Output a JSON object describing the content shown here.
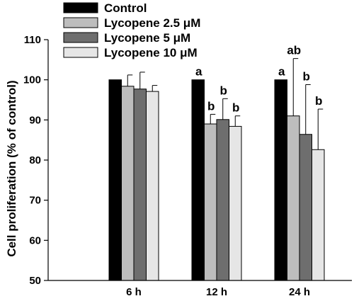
{
  "chart_data": {
    "type": "bar",
    "title": "",
    "xlabel": "",
    "ylabel": "Cell proliferation (% of control)",
    "ylim": [
      50,
      110
    ],
    "yticks": [
      50,
      60,
      70,
      80,
      90,
      100,
      110
    ],
    "categories": [
      "6 h",
      "12 h",
      "24 h"
    ],
    "grid": false,
    "legend_position": "top-left",
    "series": [
      {
        "name": "Control",
        "color": "#000000",
        "values": [
          100,
          100,
          100
        ],
        "errors": [
          0,
          0,
          0
        ],
        "labels": [
          "",
          "a",
          "a"
        ]
      },
      {
        "name": "Lycopene 2.5 μM",
        "color": "#bdbdbd",
        "values": [
          98.4,
          89.0,
          91.0
        ],
        "errors": [
          2.8,
          2.4,
          14.3
        ],
        "labels": [
          "",
          "b",
          "ab"
        ]
      },
      {
        "name": "Lycopene 5 μM",
        "color": "#6e6e6e",
        "values": [
          97.7,
          90.1,
          86.4
        ],
        "errors": [
          4.2,
          5.2,
          12.4
        ],
        "labels": [
          "",
          "b",
          "b"
        ]
      },
      {
        "name": "Lycopene 10 μM",
        "color": "#e6e6e6",
        "values": [
          97.1,
          88.4,
          82.6
        ],
        "errors": [
          1.5,
          2.6,
          10.1
        ],
        "labels": [
          "",
          "b",
          "b"
        ]
      }
    ]
  }
}
